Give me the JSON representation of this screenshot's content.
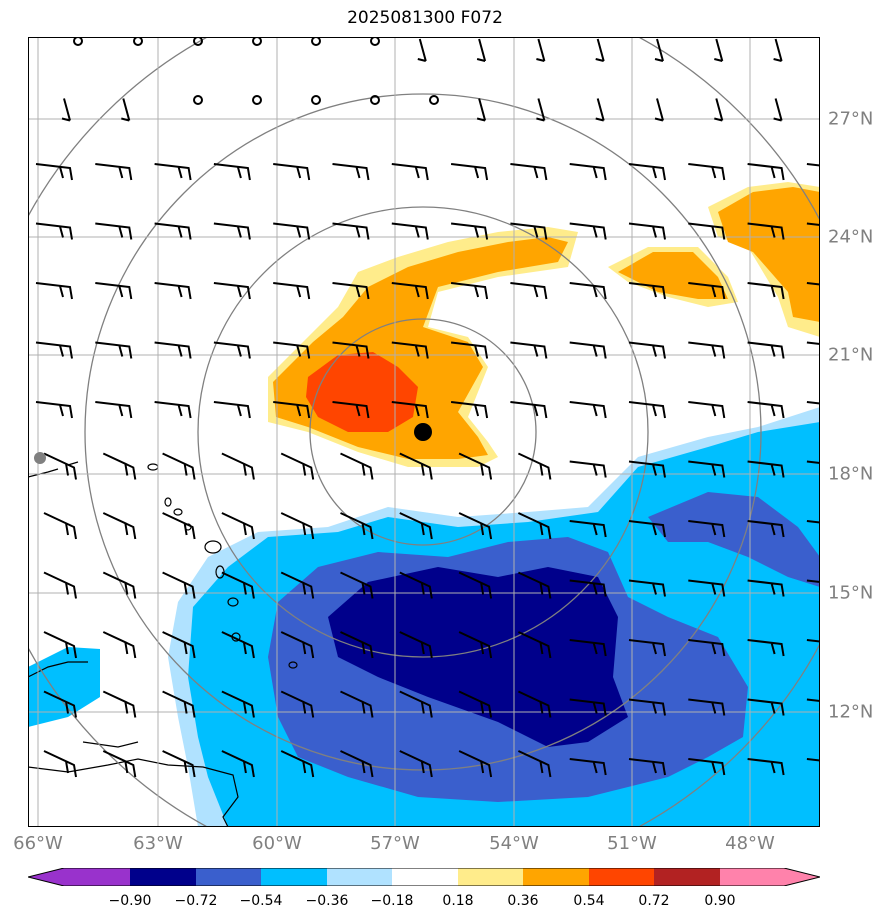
{
  "title": "2025081300 F072",
  "colors": {
    "neg_090": "#8a2be2",
    "neg_072": "#00008b",
    "neg_054": "#3a5fcd",
    "neg_036": "#00bfff",
    "neg_018": "#b0e2ff",
    "neutral": "#ffffff",
    "pos_018": "#ffec8b",
    "pos_036": "#ffa500",
    "pos_054": "#ff4500",
    "pos_072": "#b22222",
    "pos_090": "#ff82ab",
    "grid": "#b0b0b0",
    "coast": "#000000",
    "rings": "#808080"
  },
  "axes": {
    "lon_labels": [
      "66°W",
      "63°W",
      "60°W",
      "57°W",
      "54°W",
      "51°W",
      "48°W"
    ],
    "lat_labels": [
      "27°N",
      "24°N",
      "21°N",
      "18°N",
      "15°N",
      "12°N"
    ]
  },
  "colorbar": {
    "levels": [
      "−0.90",
      "−0.72",
      "−0.54",
      "−0.36",
      "−0.18",
      "0.18",
      "0.36",
      "0.54",
      "0.72",
      "0.90"
    ]
  },
  "markers": {
    "center": "storm-center",
    "left": "reference-point"
  }
}
